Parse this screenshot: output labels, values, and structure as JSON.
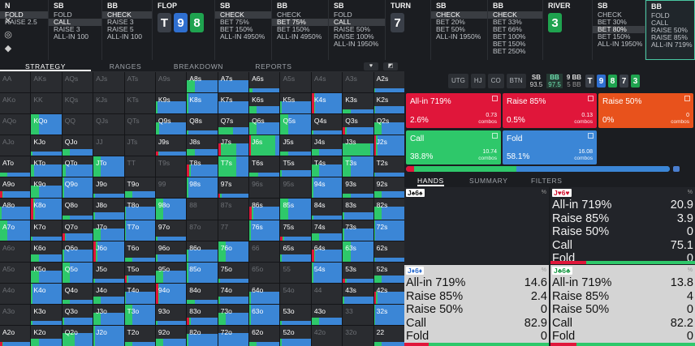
{
  "colors": {
    "allin": "#e0163a",
    "raise85": "#e0163a",
    "raise50": "#e8521c",
    "call": "#2ec86a",
    "fold": "#3b86d6",
    "cell": "#2a2c30",
    "accent": "#49c7a2"
  },
  "left_icons": [
    {
      "name": "close-icon",
      "glyph": "✕"
    },
    {
      "name": "target-icon",
      "glyph": "◎"
    },
    {
      "name": "cube-icon",
      "glyph": "◆"
    }
  ],
  "columns": [
    {
      "id": "partial",
      "header": "N",
      "actions": [
        {
          "t": "FOLD",
          "sel": true
        },
        {
          "t": "RAISE 2.5",
          "sel": false
        }
      ]
    },
    {
      "id": "sb1",
      "header": "SB",
      "actions": [
        {
          "t": "FOLD",
          "sel": false
        },
        {
          "t": "CALL",
          "sel": true
        },
        {
          "t": "RAISE 3",
          "sel": false
        },
        {
          "t": "ALL-IN 100",
          "sel": false
        }
      ]
    },
    {
      "id": "bb1",
      "header": "BB",
      "actions": [
        {
          "t": "CHECK",
          "sel": true
        },
        {
          "t": "RAISE 3",
          "sel": false
        },
        {
          "t": "RAISE 5",
          "sel": false
        },
        {
          "t": "ALL-IN 100",
          "sel": false
        }
      ]
    },
    {
      "id": "flop",
      "header": "FLOP",
      "board": [
        {
          "r": "T",
          "c": "#3a3f48"
        },
        {
          "r": "9",
          "c": "#2f6fd0"
        },
        {
          "r": "8",
          "c": "#1fa34f"
        }
      ]
    },
    {
      "id": "sb2",
      "header": "SB",
      "actions": [
        {
          "t": "CHECK",
          "sel": true
        },
        {
          "t": "BET 75%",
          "sel": false
        },
        {
          "t": "BET 150%",
          "sel": false
        },
        {
          "t": "ALL-IN 4950%",
          "sel": false
        }
      ]
    },
    {
      "id": "bb2",
      "header": "BB",
      "actions": [
        {
          "t": "CHECK",
          "sel": false
        },
        {
          "t": "BET 75%",
          "sel": true
        },
        {
          "t": "BET 150%",
          "sel": false
        },
        {
          "t": "ALL-IN 4950%",
          "sel": false
        }
      ]
    },
    {
      "id": "sb3",
      "header": "SB",
      "actions": [
        {
          "t": "FOLD",
          "sel": false
        },
        {
          "t": "CALL",
          "sel": true
        },
        {
          "t": "RAISE 50%",
          "sel": false
        },
        {
          "t": "RAISE 100%",
          "sel": false
        },
        {
          "t": "ALL-IN 1950%",
          "sel": false
        }
      ]
    },
    {
      "id": "turn",
      "header": "TURN",
      "board": [
        {
          "r": "7",
          "c": "#3a3f48"
        }
      ]
    },
    {
      "id": "sb4",
      "header": "SB",
      "actions": [
        {
          "t": "CHECK",
          "sel": true
        },
        {
          "t": "BET 20%",
          "sel": false
        },
        {
          "t": "BET 50%",
          "sel": false
        },
        {
          "t": "ALL-IN 1950%",
          "sel": false
        }
      ]
    },
    {
      "id": "bb3",
      "header": "BB",
      "actions": [
        {
          "t": "CHECK",
          "sel": true
        },
        {
          "t": "BET 33%",
          "sel": false
        },
        {
          "t": "BET 66%",
          "sel": false
        },
        {
          "t": "BET 100%",
          "sel": false
        },
        {
          "t": "BET 150%",
          "sel": false
        },
        {
          "t": "BET 250%",
          "sel": false
        }
      ]
    },
    {
      "id": "river",
      "header": "RIVER",
      "board": [
        {
          "r": "3",
          "c": "#1fa34f"
        }
      ]
    },
    {
      "id": "sb5",
      "header": "SB",
      "actions": [
        {
          "t": "CHECK",
          "sel": false
        },
        {
          "t": "BET 30%",
          "sel": false
        },
        {
          "t": "BET 80%",
          "sel": true
        },
        {
          "t": "BET 150%",
          "sel": false
        },
        {
          "t": "ALL-IN 1950%",
          "sel": false
        }
      ]
    },
    {
      "id": "bb4",
      "header": "BB",
      "actions": [
        {
          "t": "FOLD",
          "sel": false
        },
        {
          "t": "CALL",
          "sel": false
        },
        {
          "t": "RAISE 50%",
          "sel": false
        },
        {
          "t": "RAISE 85%",
          "sel": false
        },
        {
          "t": "ALL-IN 719%",
          "sel": false
        }
      ]
    }
  ],
  "tabs": [
    "STRATEGY",
    "RANGES",
    "BREAKDOWN",
    "REPORTS"
  ],
  "grid_hands": [
    [
      "AA",
      "AKs",
      "AQs",
      "AJs",
      "ATs",
      "A9s",
      "A8s",
      "A7s",
      "A6s",
      "A5s",
      "A4s",
      "A3s",
      "A2s"
    ],
    [
      "AKo",
      "KK",
      "KQs",
      "KJs",
      "KTs",
      "K9s",
      "K8s",
      "K7s",
      "K6s",
      "K5s",
      "K4s",
      "K3s",
      "K2s"
    ],
    [
      "AQo",
      "KQo",
      "QQ",
      "QJs",
      "QTs",
      "Q9s",
      "Q8s",
      "Q7s",
      "Q6s",
      "Q5s",
      "Q4s",
      "Q3s",
      "Q2s"
    ],
    [
      "AJo",
      "KJo",
      "QJo",
      "JJ",
      "JTs",
      "J9s",
      "J8s",
      "J7s",
      "J6s",
      "J5s",
      "J4s",
      "J3s",
      "J2s"
    ],
    [
      "ATo",
      "KTo",
      "QTo",
      "JTo",
      "TT",
      "T9s",
      "T8s",
      "T7s",
      "T6s",
      "T5s",
      "T4s",
      "T3s",
      "T2s"
    ],
    [
      "A9o",
      "K9o",
      "Q9o",
      "J9o",
      "T9o",
      "99",
      "98s",
      "97s",
      "96s",
      "95s",
      "94s",
      "93s",
      "92s"
    ],
    [
      "A8o",
      "K8o",
      "Q8o",
      "J8o",
      "T8o",
      "98o",
      "88",
      "87s",
      "86s",
      "85s",
      "84s",
      "83s",
      "82s"
    ],
    [
      "A7o",
      "K7o",
      "Q7o",
      "J7o",
      "T7o",
      "97o",
      "87o",
      "77",
      "76s",
      "75s",
      "74s",
      "73s",
      "72s"
    ],
    [
      "A6o",
      "K6o",
      "Q6o",
      "J6o",
      "T6o",
      "96o",
      "86o",
      "76o",
      "66",
      "65s",
      "64s",
      "63s",
      "62s"
    ],
    [
      "A5o",
      "K5o",
      "Q5o",
      "J5o",
      "T5o",
      "95o",
      "85o",
      "75o",
      "65o",
      "55",
      "54s",
      "53s",
      "52s"
    ],
    [
      "A4o",
      "K4o",
      "Q4o",
      "J4o",
      "T4o",
      "94o",
      "84o",
      "74o",
      "64o",
      "54o",
      "44",
      "43s",
      "42s"
    ],
    [
      "A3o",
      "K3o",
      "Q3o",
      "J3o",
      "T3o",
      "93o",
      "83o",
      "73o",
      "63o",
      "53o",
      "43o",
      "33",
      "32s"
    ],
    [
      "A2o",
      "K2o",
      "Q2o",
      "J2o",
      "T2o",
      "92o",
      "82o",
      "72o",
      "62o",
      "52o",
      "42o",
      "32o",
      "22"
    ]
  ],
  "grid_weights": [
    [
      0,
      0,
      0,
      0,
      0,
      0,
      1,
      1,
      1,
      0,
      0,
      0,
      1
    ],
    [
      0,
      0,
      0,
      0,
      0,
      1,
      1,
      1,
      1,
      1,
      1,
      1,
      1
    ],
    [
      0,
      1,
      0,
      0,
      0,
      1,
      1,
      1,
      1,
      1,
      1,
      1,
      1
    ],
    [
      0,
      1,
      1,
      0,
      0,
      1,
      1,
      1,
      1,
      1,
      1,
      1,
      1
    ],
    [
      1,
      1,
      1,
      1,
      0,
      0,
      1,
      1,
      1,
      1,
      1,
      1,
      1
    ],
    [
      1,
      1,
      1,
      1,
      1,
      0,
      1,
      1,
      0,
      0,
      1,
      1,
      1
    ],
    [
      1,
      1,
      1,
      1,
      1,
      1,
      0,
      0,
      1,
      1,
      1,
      1,
      1
    ],
    [
      1,
      1,
      1,
      1,
      1,
      1,
      0,
      0,
      1,
      1,
      1,
      1,
      1
    ],
    [
      0,
      1,
      1,
      1,
      1,
      1,
      1,
      1,
      0,
      1,
      1,
      1,
      1
    ],
    [
      0,
      1,
      1,
      1,
      1,
      1,
      1,
      1,
      0,
      0,
      1,
      1,
      1
    ],
    [
      0,
      1,
      1,
      1,
      1,
      1,
      1,
      1,
      1,
      0,
      0,
      1,
      1
    ],
    [
      0,
      1,
      1,
      1,
      1,
      1,
      1,
      1,
      1,
      1,
      1,
      0,
      1
    ],
    [
      1,
      1,
      1,
      1,
      1,
      1,
      1,
      1,
      1,
      1,
      0,
      0,
      1
    ]
  ],
  "grid_strats": {
    "A7s": [
      0,
      0,
      0,
      0,
      1
    ],
    "Q9s": [
      0,
      0,
      0,
      0.1,
      0.9
    ],
    "Q7s": [
      0,
      0,
      0,
      0.5,
      0.5
    ],
    "J7s": [
      0,
      0.1,
      0,
      0.5,
      0.4
    ],
    "K7s": [
      0,
      0,
      0,
      0,
      1
    ],
    "KTo": [
      0,
      0,
      0,
      0.1,
      0.9
    ],
    "QTo": [
      0,
      0,
      0,
      0.1,
      0.9
    ],
    "T7s": [
      0,
      0,
      0,
      0.6,
      0.4
    ],
    "72o": [
      0,
      0,
      0,
      0,
      1
    ],
    "Q2o": [
      0,
      0,
      0,
      0.4,
      0.6
    ],
    "J6s": [
      0,
      0.05,
      0,
      0.8,
      0.15
    ],
    "J3s": [
      0,
      0,
      0,
      0.9,
      0.1
    ],
    "A6s": [
      0,
      0,
      0,
      0.1,
      0.9
    ],
    "T6s": [
      0,
      0,
      0,
      0.3,
      0.7
    ]
  },
  "seats": {
    "positions": [
      "UTG",
      "HJ",
      "CO",
      "BTN"
    ],
    "sb": {
      "label": "SB",
      "stack": "93.5"
    },
    "bb": {
      "label": "BB",
      "stack": "97.5"
    },
    "pot": {
      "label": "9 BB",
      "sub": "5 BB"
    },
    "board": [
      {
        "r": "T",
        "c": "#3a3f48"
      },
      {
        "r": "9",
        "c": "#2f6fd0"
      },
      {
        "r": "8",
        "c": "#1fa34f"
      },
      {
        "r": "7",
        "c": "#3a3f48"
      },
      {
        "r": "3",
        "c": "#1fa34f"
      }
    ]
  },
  "actions": [
    {
      "name": "All-in 719%",
      "pct": "2.6%",
      "combos": "0.73",
      "unit": "combos",
      "color": "#e0163a",
      "frac": 0.026
    },
    {
      "name": "Raise 85%",
      "pct": "0.5%",
      "combos": "0.13",
      "unit": "combos",
      "color": "#e0163a",
      "frac": 0.005
    },
    {
      "name": "Raise 50%",
      "pct": "0%",
      "combos": "0",
      "unit": "combos",
      "color": "#e8521c",
      "frac": 0
    },
    {
      "name": "Call",
      "pct": "38.8%",
      "combos": "10.74",
      "unit": "combos",
      "color": "#2ec86a",
      "frac": 0.388
    },
    {
      "name": "Fold",
      "pct": "58.1%",
      "combos": "16.08",
      "unit": "combos",
      "color": "#3b86d6",
      "frac": 0.581
    }
  ],
  "right_tabs": [
    "HANDS",
    "SUMMARY",
    "FILTERS"
  ],
  "hands": [
    {
      "title": "J♠6♠",
      "light": false,
      "rows": []
    },
    {
      "title": "J♥6♥",
      "light": false,
      "rows": [
        [
          "All-in 719%",
          "20.9"
        ],
        [
          "Raise 85%",
          "3.9"
        ],
        [
          "Raise 50%",
          "0"
        ],
        [
          "Call",
          "75.1"
        ],
        [
          "Fold",
          "0"
        ]
      ]
    },
    {
      "title": "J♦6♦",
      "light": true,
      "rows": [
        [
          "All-in 719%",
          "14.6"
        ],
        [
          "Raise 85%",
          "2.4"
        ],
        [
          "Raise 50%",
          "0"
        ],
        [
          "Call",
          "82.9"
        ],
        [
          "Fold",
          "0"
        ]
      ]
    },
    {
      "title": "J♣6♣",
      "light": true,
      "rows": [
        [
          "All-in 719%",
          "13.8"
        ],
        [
          "Raise 85%",
          "4"
        ],
        [
          "Raise 50%",
          "0"
        ],
        [
          "Call",
          "82.2"
        ],
        [
          "Fold",
          "0"
        ]
      ]
    }
  ],
  "hand_pct_label": "%"
}
